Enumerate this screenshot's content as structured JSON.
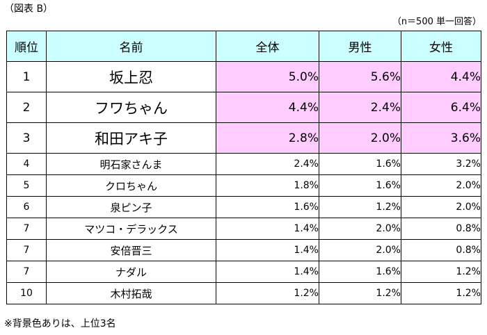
{
  "caption": "（図表 B）",
  "sample_note": "（n＝500 単一回答）",
  "headers": {
    "rank": "順位",
    "name": "名前",
    "overall": "全体",
    "male": "男性",
    "female": "女性"
  },
  "top_rows": [
    {
      "rank": "1",
      "name": "坂上忍",
      "overall": "5.0%",
      "male": "5.6%",
      "female": "4.4%"
    },
    {
      "rank": "2",
      "name": "フワちゃん",
      "overall": "4.4%",
      "male": "2.4%",
      "female": "6.4%"
    },
    {
      "rank": "3",
      "name": "和田アキ子",
      "overall": "2.8%",
      "male": "2.0%",
      "female": "3.6%"
    }
  ],
  "rows": [
    {
      "rank": "4",
      "name": "明石家さんま",
      "overall": "2.4%",
      "male": "1.6%",
      "female": "3.2%"
    },
    {
      "rank": "5",
      "name": "クロちゃん",
      "overall": "1.8%",
      "male": "1.6%",
      "female": "2.0%"
    },
    {
      "rank": "6",
      "name": "泉ピン子",
      "overall": "1.6%",
      "male": "1.2%",
      "female": "2.0%"
    },
    {
      "rank": "7",
      "name": "マツコ・デラックス",
      "overall": "1.4%",
      "male": "2.0%",
      "female": "0.8%"
    },
    {
      "rank": "7",
      "name": "安倍晋三",
      "overall": "1.4%",
      "male": "2.0%",
      "female": "0.8%"
    },
    {
      "rank": "7",
      "name": "ナダル",
      "overall": "1.4%",
      "male": "1.6%",
      "female": "1.2%"
    },
    {
      "rank": "10",
      "name": "木村拓哉",
      "overall": "1.2%",
      "male": "1.2%",
      "female": "1.2%"
    }
  ],
  "footnote": "※背景色ありは、上位3名",
  "colors": {
    "header_bg": "#ccffff",
    "highlight_bg": "#ffccff"
  }
}
